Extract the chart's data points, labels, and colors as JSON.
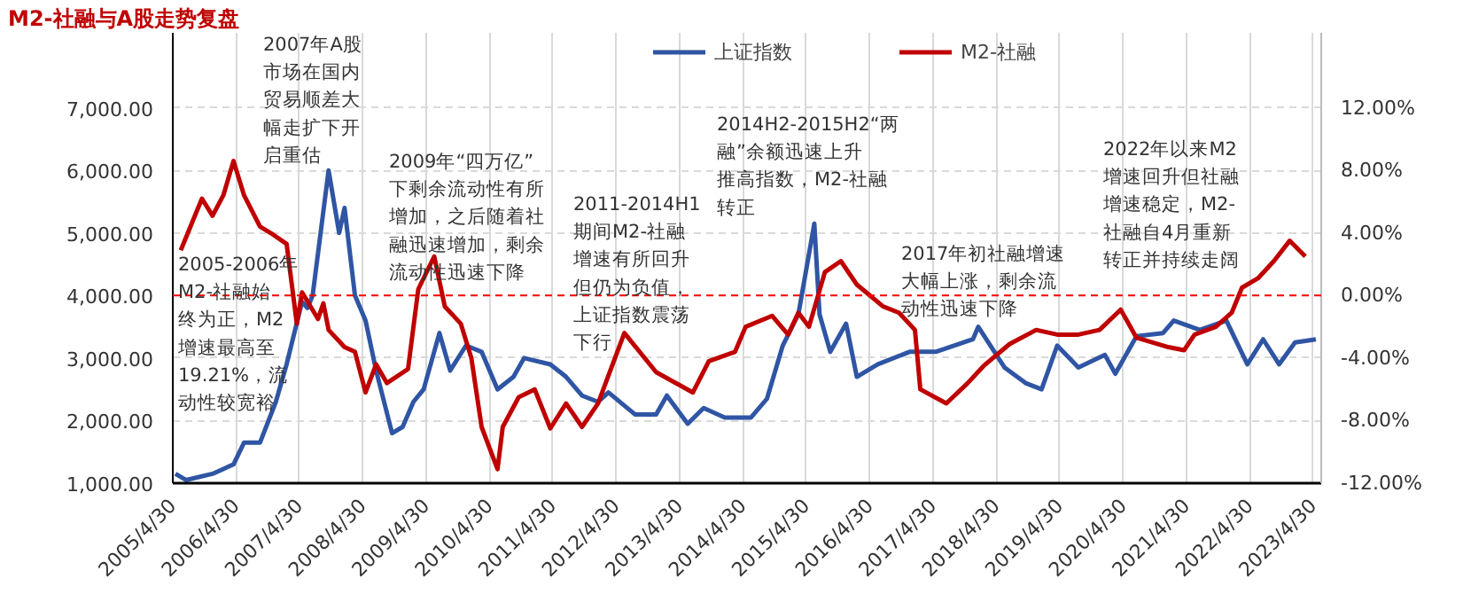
{
  "chart_data": {
    "type": "line",
    "title": "M2-社融与A股走势复盘",
    "legend": "top",
    "grid": true,
    "line_style": "solid",
    "marker": "none",
    "xlim": [
      "2005-04-30",
      "2023-06-15"
    ],
    "xticks": [
      {
        "value": "2005-04-30",
        "label": "2005/4/30"
      },
      {
        "value": "2006-04-30",
        "label": "2006/4/30"
      },
      {
        "value": "2007-04-30",
        "label": "2007/4/30"
      },
      {
        "value": "2008-04-30",
        "label": "2008/4/30"
      },
      {
        "value": "2009-04-30",
        "label": "2009/4/30"
      },
      {
        "value": "2010-04-30",
        "label": "2010/4/30"
      },
      {
        "value": "2011-04-30",
        "label": "2011/4/30"
      },
      {
        "value": "2012-04-30",
        "label": "2012/4/30"
      },
      {
        "value": "2013-04-30",
        "label": "2013/4/30"
      },
      {
        "value": "2014-04-30",
        "label": "2014/4/30"
      },
      {
        "value": "2015-04-30",
        "label": "2015/4/30"
      },
      {
        "value": "2016-04-30",
        "label": "2016/4/30"
      },
      {
        "value": "2017-04-30",
        "label": "2017/4/30"
      },
      {
        "value": "2018-04-30",
        "label": "2018/4/30"
      },
      {
        "value": "2019-04-30",
        "label": "2019/4/30"
      },
      {
        "value": "2020-04-30",
        "label": "2020/4/30"
      },
      {
        "value": "2021-04-30",
        "label": "2021/4/30"
      },
      {
        "value": "2022-04-30",
        "label": "2022/4/30"
      },
      {
        "value": "2023-04-30",
        "label": "2023/4/30"
      }
    ],
    "ylim": [
      1000,
      8200
    ],
    "yticks": [
      {
        "value": 1000,
        "label": "1,000.00"
      },
      {
        "value": 2000,
        "label": "2,000.00"
      },
      {
        "value": 3000,
        "label": "3,000.00"
      },
      {
        "value": 4000,
        "label": "4,000.00"
      },
      {
        "value": 5000,
        "label": "5,000.00"
      },
      {
        "value": 6000,
        "label": "6,000.00"
      },
      {
        "value": 7000,
        "label": "7,000.00"
      }
    ],
    "y2lim": [
      -12,
      16.8
    ],
    "y2ticks": [
      {
        "value": -12,
        "label": "-12.00%"
      },
      {
        "value": -8,
        "label": "-8.00%"
      },
      {
        "value": -4,
        "label": "-4.00%"
      },
      {
        "value": 0,
        "label": "0.00%"
      },
      {
        "value": 4,
        "label": "4.00%"
      },
      {
        "value": 8,
        "label": "8.00%"
      },
      {
        "value": 12,
        "label": "12.00%"
      }
    ],
    "ref_lines": [
      {
        "axis": "y2",
        "value": 0,
        "label": null,
        "color": "#ff0000",
        "line_style": "dashed"
      }
    ],
    "series": [
      {
        "name": "上证指数",
        "color": "#2f55a4",
        "x": [
          "2005-05",
          "2005-07",
          "2005-12",
          "2006-04",
          "2006-06",
          "2006-09",
          "2006-12",
          "2007-02",
          "2007-05",
          "2007-06",
          "2007-07",
          "2007-10",
          "2007-12",
          "2008-01",
          "2008-03",
          "2008-05",
          "2008-07",
          "2008-10",
          "2008-12",
          "2009-02",
          "2009-04",
          "2009-07",
          "2009-09",
          "2009-12",
          "2010-03",
          "2010-06",
          "2010-09",
          "2010-11",
          "2011-04",
          "2011-07",
          "2011-10",
          "2012-01",
          "2012-03",
          "2012-08",
          "2012-12",
          "2013-02",
          "2013-06",
          "2013-09",
          "2014-01",
          "2014-06",
          "2014-09",
          "2014-12",
          "2015-03",
          "2015-06",
          "2015-07",
          "2015-09",
          "2015-12",
          "2016-02",
          "2016-06",
          "2016-12",
          "2017-05",
          "2017-12",
          "2018-01",
          "2018-06",
          "2018-10",
          "2019-01",
          "2019-04",
          "2019-08",
          "2020-01",
          "2020-03",
          "2020-07",
          "2020-12",
          "2021-02",
          "2021-07",
          "2021-12",
          "2022-04",
          "2022-07",
          "2022-10",
          "2023-01",
          "2023-05"
        ],
        "values": [
          1150,
          1050,
          1150,
          1300,
          1650,
          1650,
          2300,
          2900,
          3900,
          3800,
          4000,
          6000,
          5000,
          5400,
          4000,
          3600,
          2800,
          1800,
          1900,
          2300,
          2500,
          3400,
          2800,
          3200,
          3100,
          2500,
          2700,
          3000,
          2900,
          2700,
          2400,
          2300,
          2450,
          2100,
          2100,
          2400,
          1950,
          2200,
          2050,
          2050,
          2350,
          3200,
          3700,
          5150,
          3700,
          3100,
          3550,
          2700,
          2900,
          3100,
          3100,
          3300,
          3500,
          2850,
          2600,
          2500,
          3200,
          2850,
          3050,
          2750,
          3350,
          3400,
          3600,
          3450,
          3600,
          2900,
          3300,
          2900,
          3250,
          3300
        ]
      },
      {
        "name": "M2-社融",
        "color": "#c00000",
        "axis": "y2",
        "x": [
          "2005-06",
          "2005-10",
          "2005-12",
          "2006-02",
          "2006-04",
          "2006-06",
          "2006-09",
          "2006-11",
          "2007-02",
          "2007-04",
          "2007-05",
          "2007-08",
          "2007-09",
          "2007-10",
          "2008-01",
          "2008-03",
          "2008-05",
          "2008-07",
          "2008-09",
          "2009-01",
          "2009-03",
          "2009-06",
          "2009-08",
          "2009-11",
          "2010-01",
          "2010-03",
          "2010-05",
          "2010-06",
          "2010-07",
          "2010-10",
          "2011-01",
          "2011-04",
          "2011-07",
          "2011-10",
          "2012-01",
          "2012-06",
          "2012-12",
          "2013-07",
          "2013-10",
          "2014-03",
          "2014-05",
          "2014-10",
          "2015-01",
          "2015-03",
          "2015-05",
          "2015-08",
          "2015-11",
          "2016-02",
          "2016-07",
          "2016-10",
          "2017-01",
          "2017-02",
          "2017-07",
          "2017-11",
          "2018-02",
          "2018-07",
          "2018-12",
          "2019-04",
          "2019-08",
          "2019-12",
          "2020-04",
          "2020-07",
          "2021-01",
          "2021-04",
          "2021-06",
          "2021-10",
          "2022-01",
          "2022-03",
          "2022-06",
          "2022-09",
          "2022-12",
          "2023-03"
        ],
        "values": [
          2.9,
          6.2,
          5.1,
          6.4,
          8.6,
          6.4,
          4.4,
          4.0,
          3.3,
          -1.8,
          0.2,
          -1.5,
          -0.5,
          -2.2,
          -3.3,
          -3.6,
          -6.2,
          -4.4,
          -5.6,
          -4.7,
          0.4,
          2.5,
          -0.7,
          -1.8,
          -4.0,
          -8.4,
          -10.2,
          -11.1,
          -8.4,
          -6.5,
          -6.0,
          -8.5,
          -6.9,
          -8.4,
          -6.9,
          -2.4,
          -4.9,
          -6.2,
          -4.2,
          -3.6,
          -2.0,
          -1.3,
          -2.5,
          -1.1,
          -2.0,
          1.5,
          2.2,
          0.7,
          -0.7,
          -1.1,
          -2.2,
          -6.0,
          -6.9,
          -5.6,
          -4.5,
          -3.1,
          -2.2,
          -2.5,
          -2.5,
          -2.2,
          -0.9,
          -2.7,
          -3.3,
          -3.5,
          -2.5,
          -2.0,
          -1.1,
          0.5,
          1.1,
          2.2,
          3.5,
          2.5
        ]
      }
    ],
    "annotations": [
      "2005-2006年M2-社融始终为正，M2增速最高至19.21%，流动性较宽裕",
      "2007年A股市场在国内贸易顺差大幅走扩下开启重估",
      "2009年“四万亿”下剩余流动性有所增加，之后随着社融迅速增加，剩余流动性迅速下降",
      "2011-2014H1期间M2-社融增速有所回升但仍为负值，上证指数震荡下行",
      "2014H2-2015H2“两融”余额迅速上升推高指数，M2-社融转正",
      "2017年初社融增速大幅上涨，剩余流动性迅速下降",
      "2022年以来M2增速回升但社融增速稳定，M2-社融自4月重新转正并持续走阔"
    ]
  }
}
